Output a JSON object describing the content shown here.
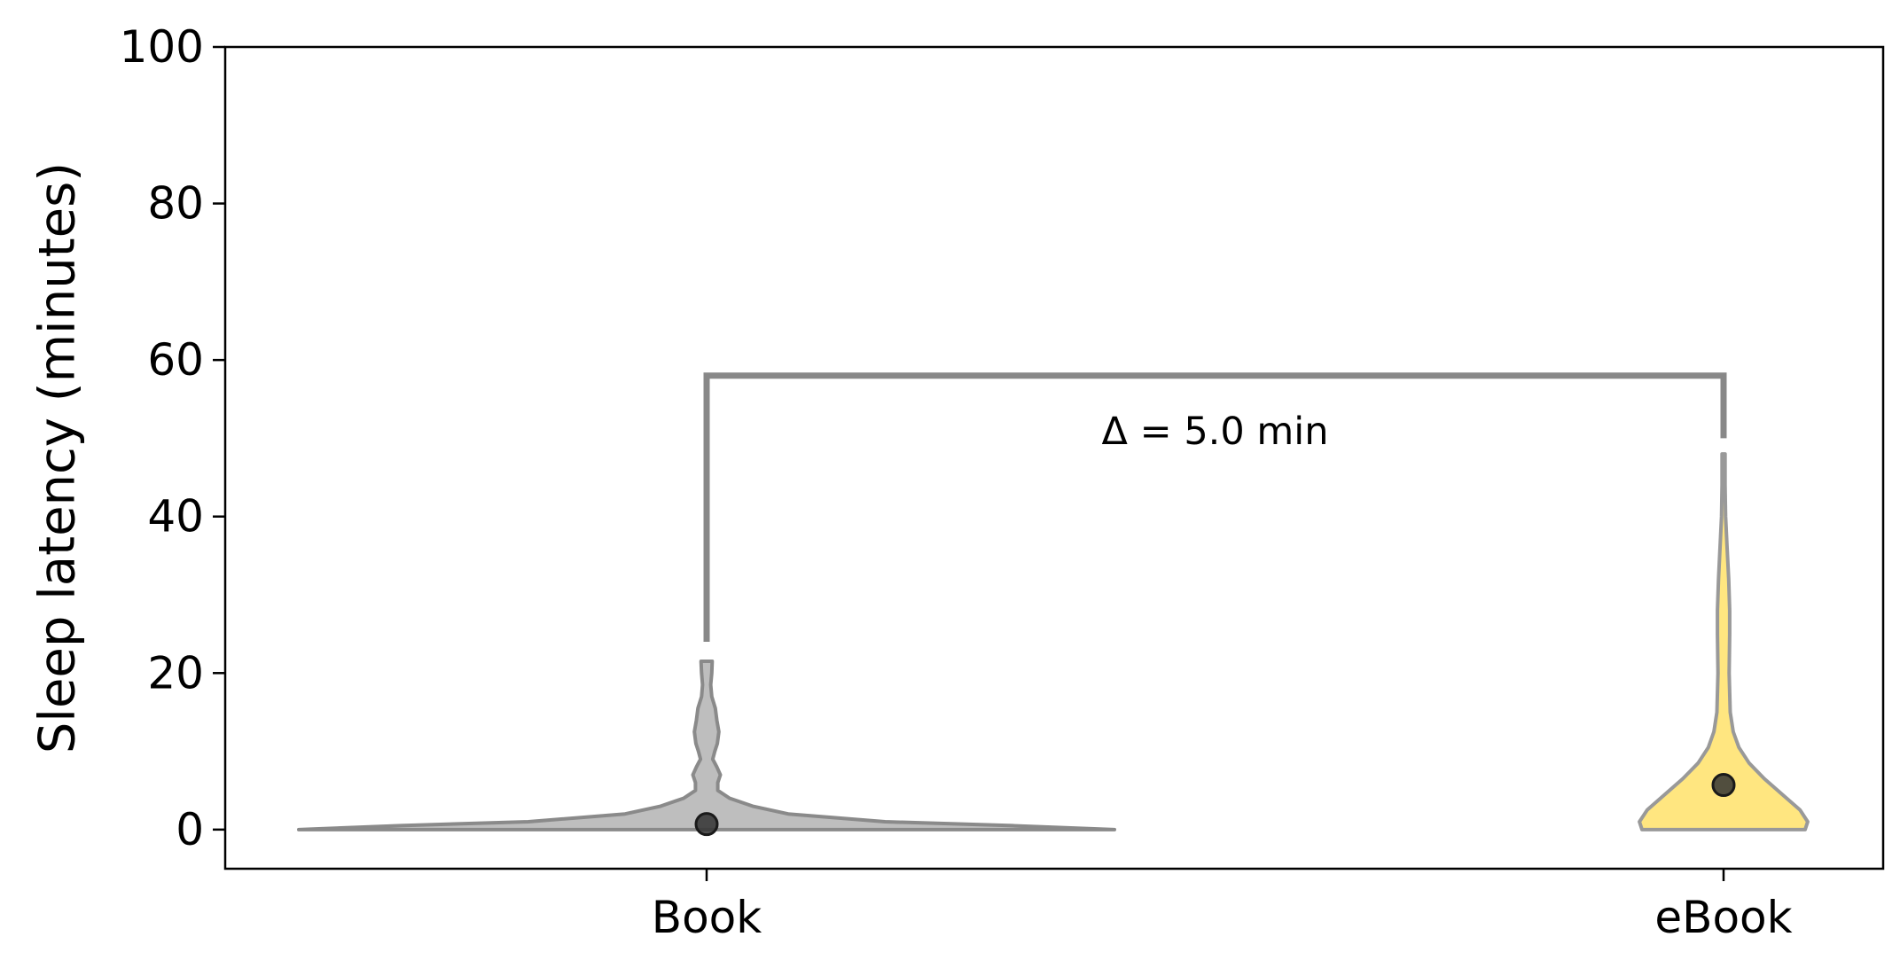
{
  "chart_data": {
    "type": "violin",
    "ylabel": "Sleep latency (minutes)",
    "xlabel": "",
    "categories": [
      "Book",
      "eBook"
    ],
    "ylim": [
      -5,
      100
    ],
    "yticks": [
      0,
      20,
      40,
      60,
      80,
      100
    ],
    "series": [
      {
        "category": "Book",
        "color": "#bebebe",
        "edge_color": "#8a8a8a",
        "marker_value": 0.7,
        "y_range": [
          0,
          21.5
        ],
        "density_profile": [
          [
            0.0,
            0.8
          ],
          [
            0.5,
            0.6
          ],
          [
            1.0,
            0.35
          ],
          [
            2.0,
            0.16
          ],
          [
            3.0,
            0.09
          ],
          [
            4.0,
            0.045
          ],
          [
            5.0,
            0.022
          ],
          [
            6.0,
            0.022
          ],
          [
            7.0,
            0.027
          ],
          [
            8.0,
            0.02
          ],
          [
            9.0,
            0.012
          ],
          [
            10.0,
            0.016
          ],
          [
            11.0,
            0.021
          ],
          [
            12.5,
            0.024
          ],
          [
            14.0,
            0.02
          ],
          [
            15.5,
            0.017
          ],
          [
            17.0,
            0.01
          ],
          [
            18.5,
            0.008
          ],
          [
            20.0,
            0.01
          ],
          [
            21.5,
            0.011
          ]
        ]
      },
      {
        "category": "eBook",
        "color": "#ffe680",
        "edge_color": "#999999",
        "marker_value": 5.7,
        "y_range": [
          0,
          48
        ],
        "density_profile": [
          [
            0.0,
            0.16
          ],
          [
            1.0,
            0.165
          ],
          [
            2.5,
            0.15
          ],
          [
            4.5,
            0.115
          ],
          [
            6.5,
            0.08
          ],
          [
            8.5,
            0.05
          ],
          [
            10.5,
            0.03
          ],
          [
            12.5,
            0.019
          ],
          [
            15.0,
            0.013
          ],
          [
            20.0,
            0.011
          ],
          [
            25.0,
            0.012
          ],
          [
            28.0,
            0.012
          ],
          [
            32.0,
            0.01
          ],
          [
            36.0,
            0.007
          ],
          [
            40.0,
            0.004
          ],
          [
            44.0,
            0.003
          ],
          [
            48.0,
            0.003
          ]
        ]
      }
    ],
    "comparison": {
      "text": "Δ = 5.0 min",
      "bracket_top": 58,
      "left_bottom": 24,
      "right_bottom": 50,
      "color": "#888888"
    }
  }
}
